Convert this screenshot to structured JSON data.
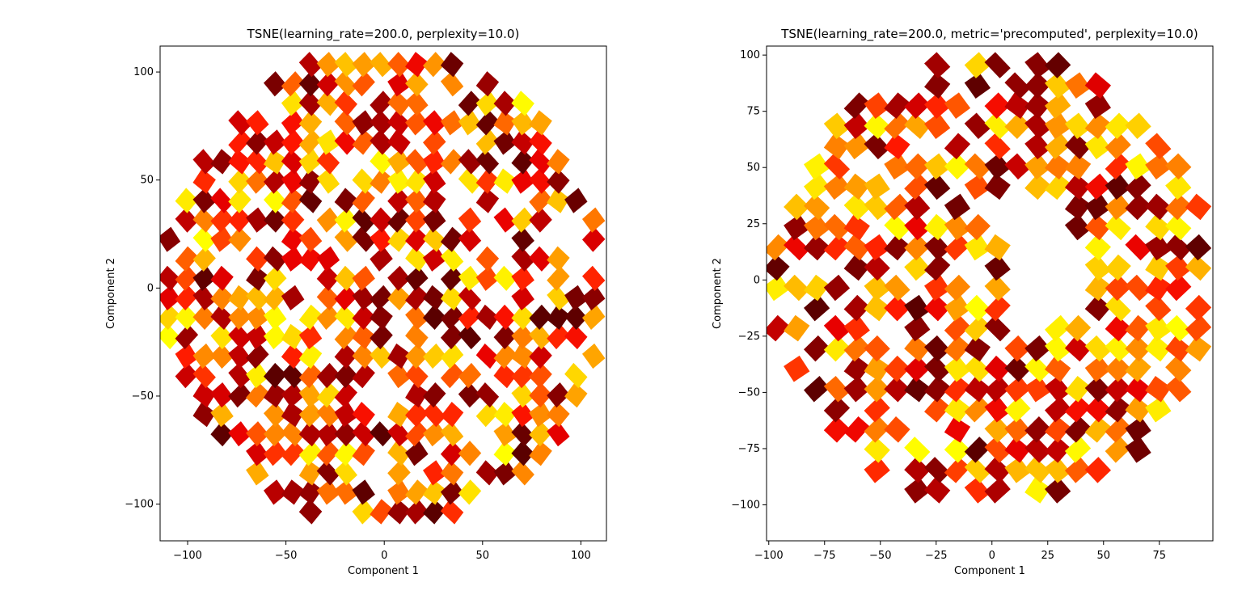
{
  "chart_data": [
    {
      "type": "heatmap",
      "title": "TSNE(learning_rate=200.0, perplexity=10.0)",
      "xlabel": "Component 1",
      "ylabel": "Component 2",
      "xlim": [
        -114,
        113
      ],
      "ylim": [
        -117,
        112
      ],
      "xticks": [
        -100,
        -50,
        0,
        50,
        100
      ],
      "xtick_labels": [
        "−100",
        "−50",
        "0",
        "50",
        "100"
      ],
      "yticks": [
        -100,
        -50,
        0,
        50,
        100
      ],
      "ytick_labels": [
        "−100",
        "−50",
        "0",
        "50",
        "100"
      ],
      "colormap": "hot",
      "shape": "disc",
      "extent_radius": 112,
      "grid": false,
      "legend": "none"
    },
    {
      "type": "heatmap",
      "title": "TSNE(learning_rate=200.0, metric='precomputed', perplexity=10.0)",
      "xlabel": "Component 1",
      "ylabel": "Component 2",
      "xlim": [
        -101,
        99
      ],
      "ylim": [
        -116,
        104
      ],
      "xticks": [
        -100,
        -75,
        -50,
        -25,
        0,
        25,
        50,
        75
      ],
      "xtick_labels": [
        "−100",
        "−75",
        "−50",
        "−25",
        "0",
        "25",
        "50",
        "75"
      ],
      "yticks": [
        -100,
        -75,
        -50,
        -25,
        0,
        25,
        50,
        75,
        100
      ],
      "ytick_labels": [
        "−100",
        "−75",
        "−50",
        "−25",
        "0",
        "25",
        "50",
        "75",
        "100"
      ],
      "colormap": "hot",
      "shape": "spiral",
      "grid": false,
      "legend": "none"
    }
  ]
}
